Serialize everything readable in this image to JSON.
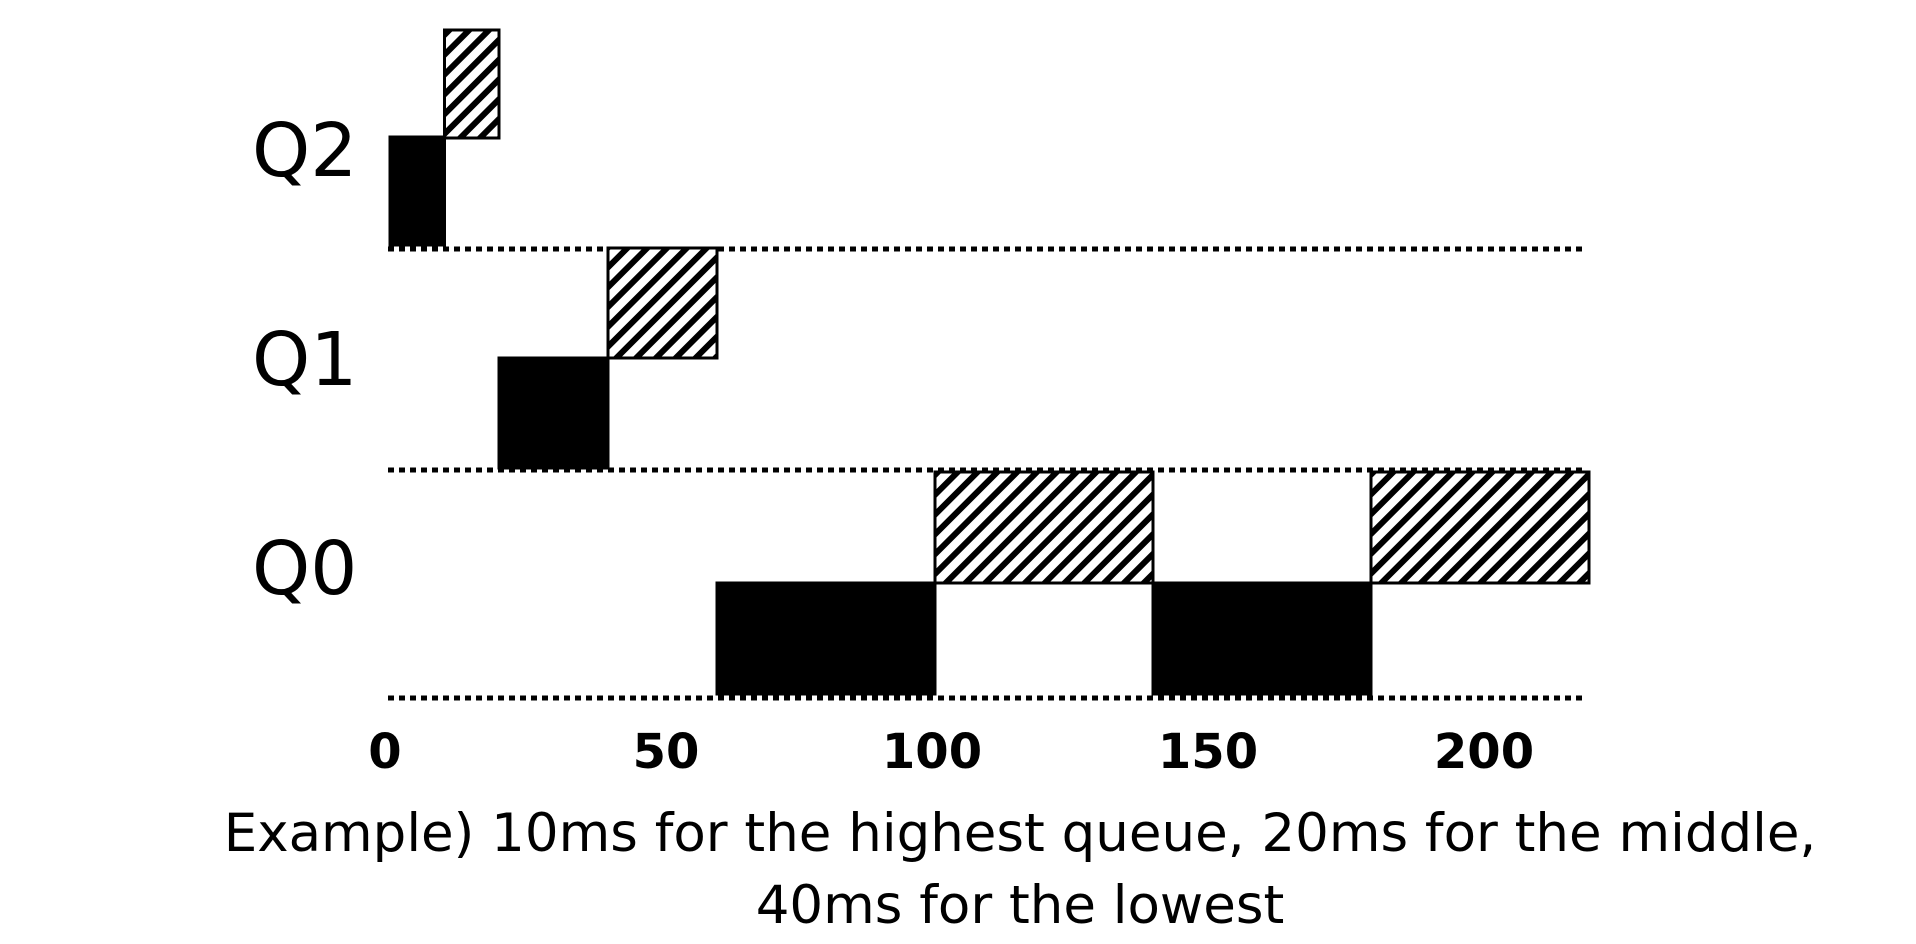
{
  "diagram": {
    "queues": [
      {
        "id": "Q2",
        "label": "Q2"
      },
      {
        "id": "Q1",
        "label": "Q1"
      },
      {
        "id": "Q0",
        "label": "Q0"
      }
    ],
    "time_ticks": [
      "0",
      "50",
      "100",
      "150",
      "200"
    ],
    "time_range": [
      0,
      220
    ],
    "job_patterns": {
      "A": "solid-black",
      "B": "diagonal-hatch"
    },
    "slices": [
      {
        "queue": "Q2",
        "job": "A",
        "start": 0,
        "end": 10
      },
      {
        "queue": "Q2",
        "job": "B",
        "start": 10,
        "end": 20
      },
      {
        "queue": "Q1",
        "job": "A",
        "start": 20,
        "end": 40
      },
      {
        "queue": "Q1",
        "job": "B",
        "start": 40,
        "end": 60
      },
      {
        "queue": "Q0",
        "job": "A",
        "start": 60,
        "end": 100
      },
      {
        "queue": "Q0",
        "job": "B",
        "start": 100,
        "end": 140
      },
      {
        "queue": "Q0",
        "job": "A",
        "start": 140,
        "end": 180
      },
      {
        "queue": "Q0",
        "job": "B",
        "start": 180,
        "end": 220
      }
    ],
    "caption_line_1": "Example) 10ms for the highest queue, 20ms for the middle,",
    "caption_line_2": "40ms for the lowest"
  }
}
